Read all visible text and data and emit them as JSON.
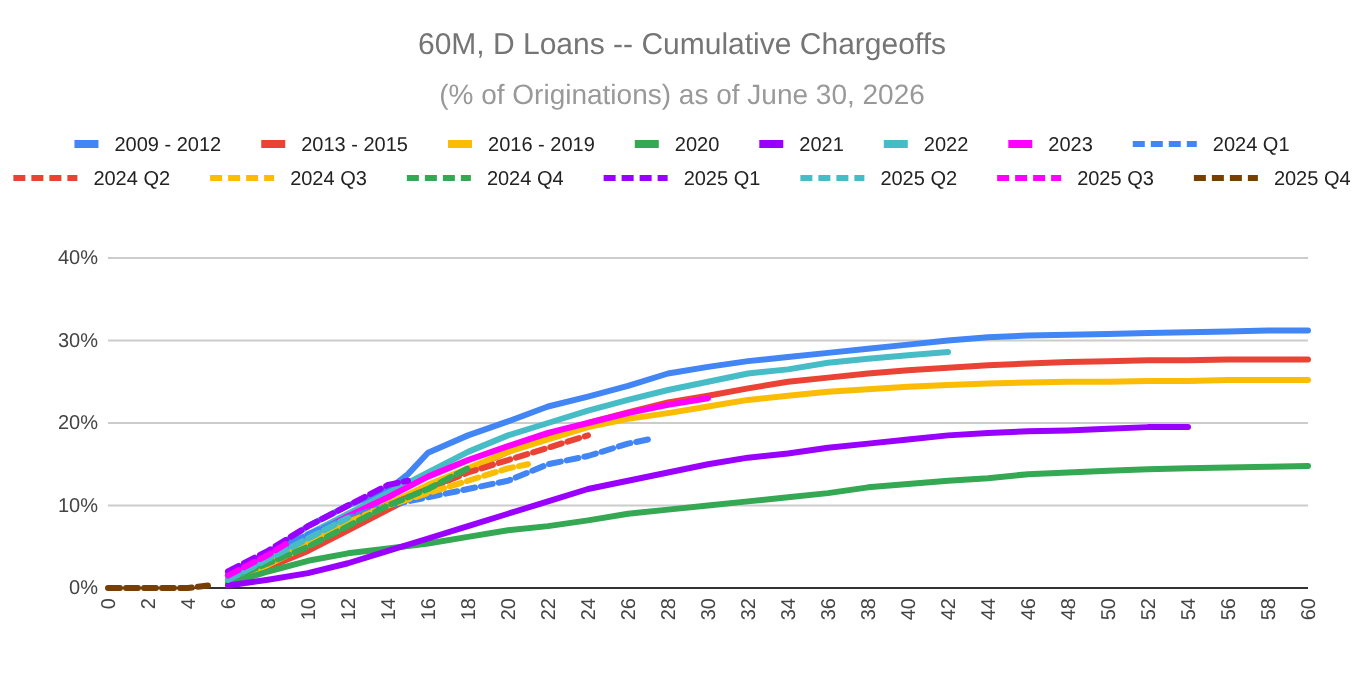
{
  "chart_data": {
    "type": "line",
    "title": "60M, D Loans -- Cumulative Chargeoffs",
    "subtitle": "(% of Originations) as of June 30, 2026",
    "xlim": [
      0,
      60
    ],
    "xticks": [
      0,
      2,
      4,
      6,
      8,
      10,
      12,
      14,
      16,
      18,
      20,
      22,
      24,
      26,
      28,
      30,
      32,
      34,
      36,
      38,
      40,
      42,
      44,
      46,
      48,
      50,
      52,
      54,
      56,
      58,
      60
    ],
    "ylim": [
      0,
      40
    ],
    "yticks": [
      {
        "value": 0,
        "label": "0%"
      },
      {
        "value": 10,
        "label": "10%"
      },
      {
        "value": 20,
        "label": "20%"
      },
      {
        "value": 30,
        "label": "30%"
      },
      {
        "value": 40,
        "label": "40%"
      }
    ],
    "grid": "y",
    "legend": "top",
    "marker": "none",
    "series": [
      {
        "name": "2009 - 2012",
        "color": "#4285f4",
        "line_style": "solid",
        "x": [
          6,
          8,
          10,
          12,
          14,
          15,
          16,
          18,
          20,
          22,
          24,
          26,
          28,
          30,
          32,
          34,
          36,
          38,
          40,
          42,
          44,
          46,
          48,
          50,
          52,
          54,
          56,
          58,
          60
        ],
        "values": [
          1.8,
          4.2,
          7.5,
          10,
          11.9,
          13.8,
          16.4,
          18.5,
          20.2,
          22,
          23.2,
          24.5,
          26,
          26.8,
          27.5,
          28,
          28.5,
          29,
          29.5,
          30,
          30.4,
          30.6,
          30.7,
          30.8,
          30.9,
          31,
          31.1,
          31.2,
          31.2
        ]
      },
      {
        "name": "2013 - 2015",
        "color": "#ea4335",
        "line_style": "solid",
        "x": [
          6,
          8,
          10,
          12,
          14,
          16,
          18,
          20,
          22,
          24,
          26,
          28,
          30,
          32,
          34,
          36,
          38,
          40,
          42,
          44,
          46,
          48,
          50,
          52,
          54,
          56,
          58,
          60
        ],
        "values": [
          0.8,
          2.5,
          4.5,
          7,
          9.5,
          12,
          14.3,
          16.5,
          18.5,
          20,
          21.3,
          22.5,
          23.3,
          24.2,
          25,
          25.5,
          26,
          26.4,
          26.7,
          27,
          27.2,
          27.4,
          27.5,
          27.6,
          27.6,
          27.7,
          27.7,
          27.7
        ]
      },
      {
        "name": "2016 - 2019",
        "color": "#fbbc04",
        "line_style": "solid",
        "x": [
          6,
          8,
          10,
          12,
          14,
          16,
          18,
          20,
          22,
          24,
          26,
          28,
          30,
          32,
          34,
          36,
          38,
          40,
          42,
          44,
          46,
          48,
          50,
          52,
          54,
          56,
          58,
          60
        ],
        "values": [
          0.7,
          2.8,
          5.2,
          7.8,
          10.2,
          12.5,
          14.5,
          16.5,
          18,
          19.5,
          20.5,
          21.2,
          22,
          22.8,
          23.3,
          23.8,
          24.1,
          24.4,
          24.6,
          24.8,
          24.9,
          25,
          25,
          25.1,
          25.1,
          25.2,
          25.2,
          25.2
        ]
      },
      {
        "name": "2020",
        "color": "#34a853",
        "line_style": "solid",
        "x": [
          6,
          8,
          10,
          12,
          14,
          16,
          18,
          20,
          22,
          24,
          26,
          28,
          30,
          32,
          34,
          36,
          38,
          40,
          42,
          44,
          46,
          48,
          50,
          52,
          54,
          56,
          58,
          60
        ],
        "values": [
          0.5,
          2,
          3.3,
          4.2,
          4.8,
          5.4,
          6.2,
          7,
          7.5,
          8.2,
          9,
          9.5,
          10,
          10.5,
          11,
          11.5,
          12.2,
          12.6,
          13,
          13.3,
          13.8,
          14,
          14.2,
          14.4,
          14.5,
          14.6,
          14.7,
          14.8
        ]
      },
      {
        "name": "2021",
        "color": "#9900ff",
        "line_style": "solid",
        "x": [
          6,
          8,
          10,
          12,
          14,
          16,
          18,
          20,
          22,
          24,
          26,
          28,
          30,
          32,
          34,
          36,
          38,
          40,
          42,
          44,
          46,
          48,
          50,
          52,
          54
        ],
        "values": [
          0.3,
          1,
          1.8,
          3,
          4.5,
          6,
          7.5,
          9,
          10.5,
          12,
          13,
          14,
          15,
          15.8,
          16.3,
          17,
          17.5,
          18,
          18.5,
          18.8,
          19,
          19.1,
          19.3,
          19.5,
          19.5
        ]
      },
      {
        "name": "2022",
        "color": "#46bdc6",
        "line_style": "solid",
        "x": [
          6,
          8,
          10,
          12,
          14,
          16,
          18,
          20,
          22,
          24,
          26,
          28,
          30,
          32,
          34,
          36,
          38,
          40,
          42
        ],
        "values": [
          1,
          3.5,
          6.5,
          9,
          11.5,
          14,
          16.5,
          18.5,
          20,
          21.5,
          22.8,
          24,
          25,
          26,
          26.5,
          27.3,
          27.8,
          28.2,
          28.6
        ]
      },
      {
        "name": "2023",
        "color": "#ff00ff",
        "line_style": "solid",
        "x": [
          6,
          8,
          10,
          12,
          14,
          16,
          18,
          20,
          22,
          24,
          26,
          28,
          30
        ],
        "values": [
          1.5,
          3.7,
          6.2,
          8.7,
          11,
          13.5,
          15.5,
          17.2,
          18.8,
          20,
          21.2,
          22.2,
          23
        ]
      },
      {
        "name": "2024 Q1",
        "color": "#4285f4",
        "line_style": "dashed",
        "x": [
          6,
          8,
          10,
          12,
          14,
          16,
          18,
          20,
          22,
          24,
          26,
          27
        ],
        "values": [
          1.5,
          4,
          6.5,
          8.5,
          10,
          11,
          12,
          13,
          15,
          16,
          17.5,
          18
        ]
      },
      {
        "name": "2024 Q2",
        "color": "#ea4335",
        "line_style": "dashed",
        "x": [
          8,
          10,
          12,
          14,
          16,
          18,
          20,
          22,
          24
        ],
        "values": [
          3,
          5.5,
          8,
          10,
          12,
          14,
          15.5,
          17,
          18.5
        ]
      },
      {
        "name": "2024 Q3",
        "color": "#fbbc04",
        "line_style": "dashed",
        "x": [
          8,
          10,
          12,
          14,
          16,
          18,
          20,
          21
        ],
        "values": [
          3,
          5.5,
          8,
          10,
          11.5,
          13,
          14.5,
          15
        ]
      },
      {
        "name": "2024 Q4",
        "color": "#34a853",
        "line_style": "dashed",
        "x": [
          6,
          8,
          10,
          12,
          14,
          16,
          18
        ],
        "values": [
          1,
          3,
          5,
          7.5,
          10,
          12,
          14.5
        ]
      },
      {
        "name": "2025 Q1",
        "color": "#9900ff",
        "line_style": "dashed",
        "x": [
          6,
          8,
          10,
          12,
          14,
          15
        ],
        "values": [
          2,
          4.5,
          7.5,
          10,
          12.5,
          13
        ]
      },
      {
        "name": "2025 Q2",
        "color": "#46bdc6",
        "line_style": "dashed",
        "x": [
          6,
          8,
          10,
          12
        ],
        "values": [
          1,
          3.5,
          6,
          8.5
        ]
      },
      {
        "name": "2025 Q3",
        "color": "#ff00ff",
        "line_style": "dashed",
        "x": [
          6,
          8,
          9
        ],
        "values": [
          1.5,
          4,
          5.5
        ]
      },
      {
        "name": "2025 Q4",
        "color": "#783f04",
        "line_style": "dashed",
        "x": [
          0,
          2,
          4,
          5
        ],
        "values": [
          0,
          0,
          0,
          0.3
        ]
      }
    ]
  }
}
